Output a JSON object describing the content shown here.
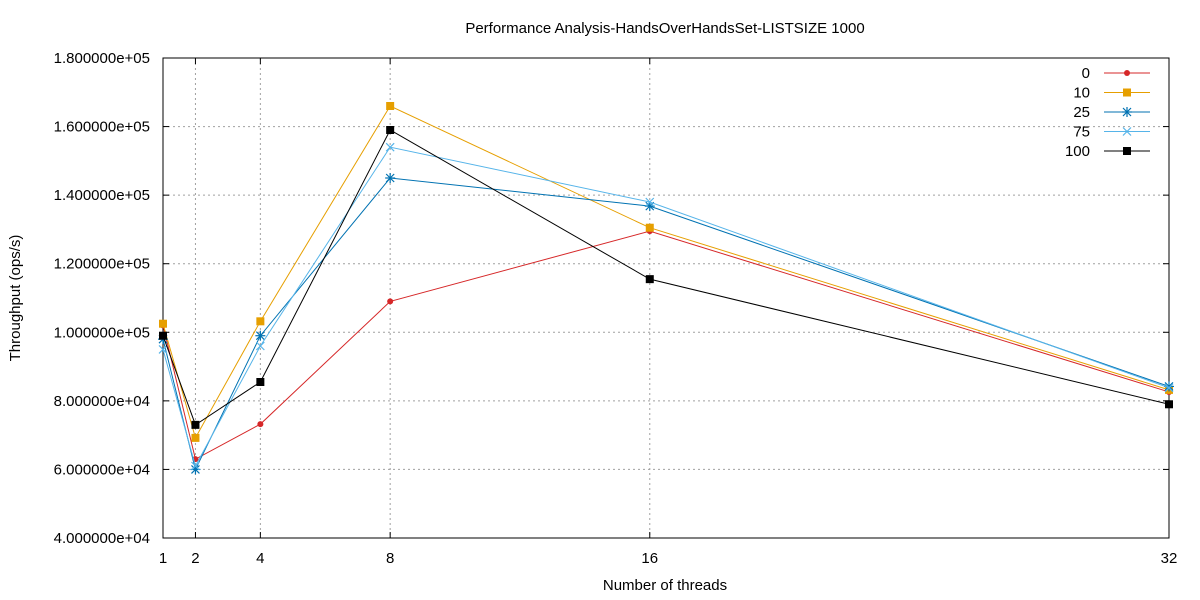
{
  "chart_data": {
    "type": "line",
    "title": "Performance Analysis-HandsOverHandsSet-LISTSIZE 1000",
    "xlabel": "Number of threads",
    "ylabel": "Throughput (ops/s)",
    "x": [
      1,
      2,
      4,
      8,
      16,
      32
    ],
    "x_ticks": [
      "1",
      "2",
      "4",
      "8",
      "16",
      "32"
    ],
    "xlim": [
      1,
      32
    ],
    "ylim": [
      40000,
      180000
    ],
    "y_ticks": [
      {
        "value": 40000,
        "label": "4.000000e+04"
      },
      {
        "value": 60000,
        "label": "6.000000e+04"
      },
      {
        "value": 80000,
        "label": "8.000000e+04"
      },
      {
        "value": 100000,
        "label": "1.000000e+05"
      },
      {
        "value": 120000,
        "label": "1.200000e+05"
      },
      {
        "value": 140000,
        "label": "1.400000e+05"
      },
      {
        "value": 160000,
        "label": "1.600000e+05"
      },
      {
        "value": 180000,
        "label": "1.800000e+05"
      }
    ],
    "grid": true,
    "legend_position": "top-right",
    "series": [
      {
        "name": "0",
        "color": "#d62728",
        "marker": "circle",
        "values": [
          102000,
          63000,
          73200,
          109000,
          129500,
          82600
        ]
      },
      {
        "name": "10",
        "color": "#e69f00",
        "marker": "square",
        "values": [
          102500,
          69200,
          103200,
          166000,
          130500,
          83200
        ]
      },
      {
        "name": "25",
        "color": "#0072b2",
        "marker": "star",
        "values": [
          98000,
          60000,
          99000,
          145000,
          136800,
          84200
        ]
      },
      {
        "name": "75",
        "color": "#56b4e9",
        "marker": "x",
        "values": [
          95000,
          61000,
          96000,
          154000,
          138000,
          83800
        ]
      },
      {
        "name": "100",
        "color": "#000000",
        "marker": "square",
        "values": [
          99000,
          73000,
          85500,
          159000,
          115500,
          79000
        ]
      }
    ]
  }
}
